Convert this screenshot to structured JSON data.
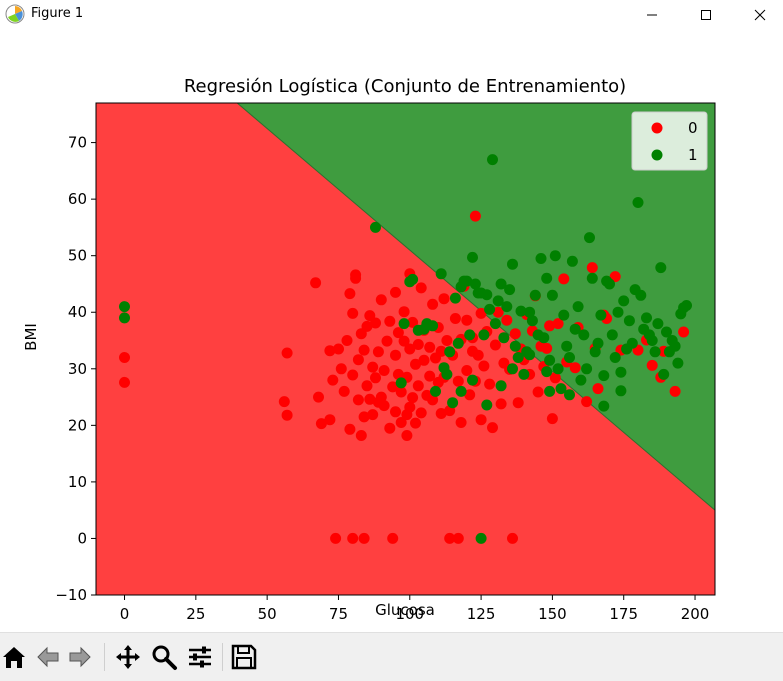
{
  "window": {
    "title": "Figure 1",
    "icons": {
      "app": "matplotlib-figure-icon",
      "minimize": "minimize-icon",
      "maximize": "maximize-icon",
      "close": "close-icon"
    }
  },
  "toolbar": {
    "buttons": [
      {
        "name": "home-button",
        "icon": "home-icon"
      },
      {
        "name": "back-button",
        "icon": "back-arrow-icon"
      },
      {
        "name": "forward-button",
        "icon": "forward-arrow-icon"
      },
      {
        "name": "pan-button",
        "icon": "move-icon"
      },
      {
        "name": "zoom-button",
        "icon": "magnifier-icon"
      },
      {
        "name": "configure-subplots-button",
        "icon": "sliders-icon"
      },
      {
        "name": "save-button",
        "icon": "floppy-disk-icon"
      }
    ]
  },
  "chart_data": {
    "type": "scatter",
    "title": "Regresión Logística (Conjunto de Entrenamiento)",
    "xlabel": "Glucosa",
    "ylabel": "BMI",
    "xlim": [
      -10,
      207
    ],
    "ylim": [
      -10,
      77
    ],
    "xticks": [
      0,
      25,
      50,
      75,
      100,
      125,
      150,
      175,
      200
    ],
    "yticks": [
      -10,
      0,
      10,
      20,
      30,
      40,
      50,
      60,
      70
    ],
    "grid": false,
    "legend": {
      "position": "top-right",
      "entries": [
        "0",
        "1"
      ]
    },
    "decision_boundary": {
      "points": [
        [
          39.5,
          77
        ],
        [
          207,
          5
        ]
      ]
    },
    "region_colors": {
      "0": "#ff4040",
      "1": "#3f9c3f"
    },
    "colors": {
      "0": "#ff0000",
      "1": "#008000"
    },
    "series": [
      {
        "name": "0",
        "points": [
          [
            0,
            32
          ],
          [
            0,
            27.6
          ],
          [
            56,
            24.2
          ],
          [
            57,
            32.8
          ],
          [
            57,
            21.8
          ],
          [
            67,
            45.2
          ],
          [
            68,
            25
          ],
          [
            69,
            20.3
          ],
          [
            72,
            33.2
          ],
          [
            72,
            21
          ],
          [
            73,
            28
          ],
          [
            74,
            0
          ],
          [
            75,
            33.5
          ],
          [
            76,
            30
          ],
          [
            77,
            26
          ],
          [
            78,
            35
          ],
          [
            79,
            43.3
          ],
          [
            79,
            19.3
          ],
          [
            80,
            28.9
          ],
          [
            80,
            39.8
          ],
          [
            80,
            0
          ],
          [
            81,
            46
          ],
          [
            81,
            46.6
          ],
          [
            82,
            31.6
          ],
          [
            82,
            24.5
          ],
          [
            83,
            36.2
          ],
          [
            83,
            18.2
          ],
          [
            84,
            33.3
          ],
          [
            84,
            0
          ],
          [
            84,
            21.5
          ],
          [
            85,
            27
          ],
          [
            85,
            37.5
          ],
          [
            86,
            24.6
          ],
          [
            86,
            39.4
          ],
          [
            87,
            30.3
          ],
          [
            87,
            21.9
          ],
          [
            88,
            28.4
          ],
          [
            88,
            38.1
          ],
          [
            89,
            24.1
          ],
          [
            89,
            33
          ],
          [
            90,
            25
          ],
          [
            90,
            42.2
          ],
          [
            91,
            29.7
          ],
          [
            91,
            23.5
          ],
          [
            92,
            34.9
          ],
          [
            93,
            19.5
          ],
          [
            93,
            38.4
          ],
          [
            94,
            26.8
          ],
          [
            94,
            0
          ],
          [
            95,
            32.4
          ],
          [
            95,
            22.4
          ],
          [
            95,
            43.5
          ],
          [
            96,
            36.4
          ],
          [
            96,
            29
          ],
          [
            97,
            20.5
          ],
          [
            97,
            25.9
          ],
          [
            98,
            34.9
          ],
          [
            98,
            40.1
          ],
          [
            99,
            21.9
          ],
          [
            99,
            28.5
          ],
          [
            99,
            18.2
          ],
          [
            100,
            33.5
          ],
          [
            100,
            23.2
          ],
          [
            100,
            46.8
          ],
          [
            101,
            38.2
          ],
          [
            101,
            24.9
          ],
          [
            102,
            30.8
          ],
          [
            102,
            20.4
          ],
          [
            103,
            34.3
          ],
          [
            103,
            27
          ],
          [
            104,
            44.3
          ],
          [
            104,
            22.2
          ],
          [
            105,
            31.5
          ],
          [
            105,
            36.8
          ],
          [
            106,
            25.3
          ],
          [
            107,
            28.7
          ],
          [
            107,
            33.8
          ],
          [
            108,
            41.4
          ],
          [
            108,
            24.5
          ],
          [
            109,
            31.9
          ],
          [
            110,
            27.6
          ],
          [
            110,
            37.3
          ],
          [
            111,
            22.1
          ],
          [
            111,
            33.1
          ],
          [
            112,
            42.4
          ],
          [
            112,
            28.5
          ],
          [
            113,
            35
          ],
          [
            114,
            22.6
          ],
          [
            114,
            0
          ],
          [
            115,
            32.4
          ],
          [
            116,
            38.9
          ],
          [
            117,
            27.8
          ],
          [
            117,
            0
          ],
          [
            118,
            35.2
          ],
          [
            118,
            20.5
          ],
          [
            119,
            44.6
          ],
          [
            120,
            29.7
          ],
          [
            120,
            38.6
          ],
          [
            121,
            25.4
          ],
          [
            122,
            33.1
          ],
          [
            122,
            35.5
          ],
          [
            123,
            57
          ],
          [
            123,
            27.8
          ],
          [
            124,
            32.4
          ],
          [
            125,
            39.8
          ],
          [
            125,
            21
          ],
          [
            126,
            30.5
          ],
          [
            127,
            36.6
          ],
          [
            128,
            27.3
          ],
          [
            129,
            19.6
          ],
          [
            130,
            34.2
          ],
          [
            131,
            40
          ],
          [
            132,
            23.8
          ],
          [
            133,
            31
          ],
          [
            134,
            38.6
          ],
          [
            135,
            29.9
          ],
          [
            136,
            0
          ],
          [
            137,
            36.2
          ],
          [
            138,
            24
          ],
          [
            139,
            33.5
          ],
          [
            140,
            31.6
          ],
          [
            141,
            39.6
          ],
          [
            142,
            29
          ],
          [
            143,
            36.7
          ],
          [
            144,
            42.9
          ],
          [
            145,
            25.9
          ],
          [
            146,
            34
          ],
          [
            147,
            30.4
          ],
          [
            148,
            33.6
          ],
          [
            149,
            37.6
          ],
          [
            150,
            21.2
          ],
          [
            151,
            28.4
          ],
          [
            152,
            38
          ],
          [
            154,
            45.9
          ],
          [
            155,
            31.2
          ],
          [
            158,
            30.2
          ],
          [
            159,
            37.3
          ],
          [
            162,
            24.2
          ],
          [
            164,
            47.9
          ],
          [
            165,
            33.6
          ],
          [
            166,
            26.5
          ],
          [
            168,
            39.5
          ],
          [
            169,
            38.9
          ],
          [
            172,
            46.3
          ],
          [
            174,
            33.3
          ],
          [
            180,
            33.3
          ],
          [
            183,
            35.1
          ],
          [
            185,
            30.6
          ],
          [
            188,
            28.5
          ],
          [
            189,
            33.1
          ],
          [
            193,
            26
          ],
          [
            196,
            36.5
          ]
        ]
      },
      {
        "name": "1",
        "points": [
          [
            0,
            41
          ],
          [
            0,
            39
          ],
          [
            88,
            55
          ],
          [
            98,
            38
          ],
          [
            100,
            45.4
          ],
          [
            101,
            45.8
          ],
          [
            103,
            36.8
          ],
          [
            105,
            37
          ],
          [
            106,
            38
          ],
          [
            108,
            37.6
          ],
          [
            111,
            46.8
          ],
          [
            112,
            30.2
          ],
          [
            114,
            33
          ],
          [
            116,
            42.5
          ],
          [
            117,
            34.5
          ],
          [
            118,
            44.5
          ],
          [
            119,
            45.5
          ],
          [
            120,
            45.5
          ],
          [
            121,
            36
          ],
          [
            122,
            49.7
          ],
          [
            123,
            45
          ],
          [
            124,
            43.4
          ],
          [
            125,
            43.4
          ],
          [
            126,
            36
          ],
          [
            127,
            43.1
          ],
          [
            128,
            40.5
          ],
          [
            129,
            67
          ],
          [
            130,
            38
          ],
          [
            131,
            42
          ],
          [
            132,
            45
          ],
          [
            133,
            35.5
          ],
          [
            134,
            41
          ],
          [
            135,
            44
          ],
          [
            136,
            48.5
          ],
          [
            137,
            34
          ],
          [
            138,
            32
          ],
          [
            139,
            40.2
          ],
          [
            140,
            29
          ],
          [
            141,
            33
          ],
          [
            142,
            40
          ],
          [
            143,
            38.5
          ],
          [
            144,
            43
          ],
          [
            145,
            36
          ],
          [
            146,
            49.5
          ],
          [
            147,
            35.5
          ],
          [
            148,
            46
          ],
          [
            149,
            31.5
          ],
          [
            150,
            43
          ],
          [
            151,
            50
          ],
          [
            152,
            30
          ],
          [
            153,
            26.5
          ],
          [
            154,
            39.5
          ],
          [
            155,
            34
          ],
          [
            156,
            32
          ],
          [
            157,
            49
          ],
          [
            158,
            37
          ],
          [
            159,
            41
          ],
          [
            160,
            28
          ],
          [
            161,
            36
          ],
          [
            162,
            30
          ],
          [
            163,
            53.2
          ],
          [
            164,
            46
          ],
          [
            165,
            33
          ],
          [
            166,
            34.5
          ],
          [
            167,
            39.5
          ],
          [
            168,
            28.8
          ],
          [
            169,
            45.5
          ],
          [
            170,
            45
          ],
          [
            171,
            36
          ],
          [
            172,
            32
          ],
          [
            173,
            40
          ],
          [
            174,
            29.4
          ],
          [
            175,
            42
          ],
          [
            176,
            33.5
          ],
          [
            177,
            38.5
          ],
          [
            178,
            34.5
          ],
          [
            179,
            44
          ],
          [
            180,
            59.4
          ],
          [
            181,
            43
          ],
          [
            182,
            37
          ],
          [
            183,
            39
          ],
          [
            184,
            36
          ],
          [
            185,
            35
          ],
          [
            186,
            33
          ],
          [
            187,
            38
          ],
          [
            188,
            47.9
          ],
          [
            189,
            29
          ],
          [
            190,
            36.5
          ],
          [
            191,
            33
          ],
          [
            192,
            35
          ],
          [
            193,
            34
          ],
          [
            194,
            31
          ],
          [
            195,
            39.7
          ],
          [
            196,
            40.8
          ],
          [
            197,
            41.2
          ],
          [
            125,
            0
          ],
          [
            148,
            29.5
          ],
          [
            115,
            24
          ],
          [
            118,
            26
          ],
          [
            122,
            28
          ],
          [
            127,
            23.6
          ],
          [
            132,
            27
          ],
          [
            136,
            30
          ],
          [
            142,
            32.5
          ],
          [
            149,
            26
          ],
          [
            156,
            25.4
          ],
          [
            168,
            23.4
          ],
          [
            174,
            26.1
          ],
          [
            109,
            26
          ],
          [
            113,
            29
          ],
          [
            97,
            27.5
          ]
        ]
      }
    ]
  }
}
